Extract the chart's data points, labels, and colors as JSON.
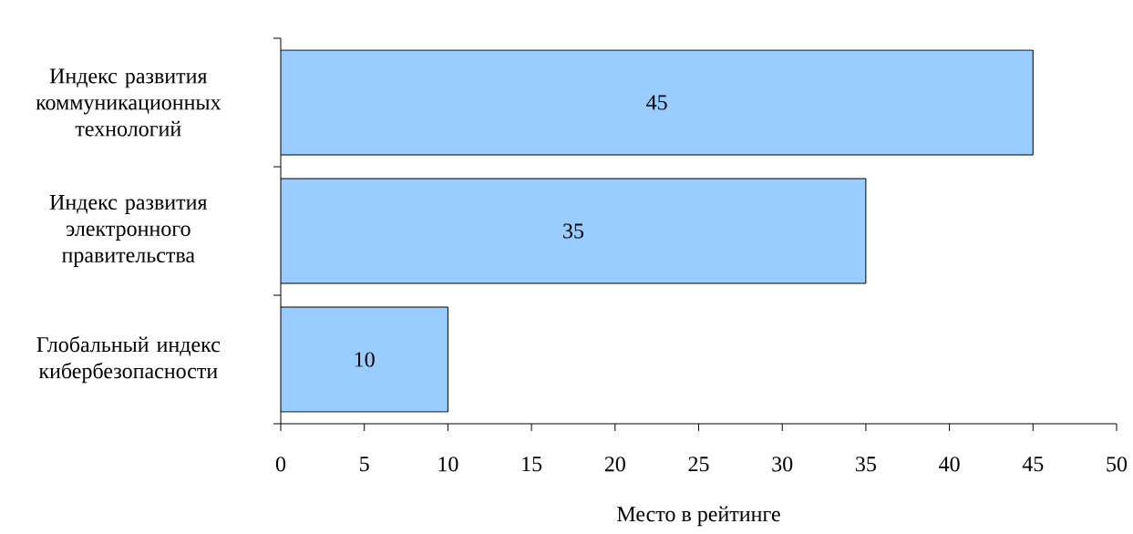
{
  "chart_data": {
    "type": "bar",
    "orientation": "horizontal",
    "xlabel": "Место в рейтинге",
    "categories": [
      "Индекс развития коммуникационных технологий",
      "Индекс развития электронного правительства",
      "Глобальный индекс кибербезопасности"
    ],
    "values": [
      45,
      35,
      10
    ],
    "value_labels": [
      "45",
      "35",
      "10"
    ],
    "color": "#99ccff",
    "xlim": [
      0,
      50
    ],
    "xticks": [
      0,
      5,
      10,
      15,
      20,
      25,
      30,
      35,
      40,
      45,
      50
    ],
    "grid": false
  }
}
